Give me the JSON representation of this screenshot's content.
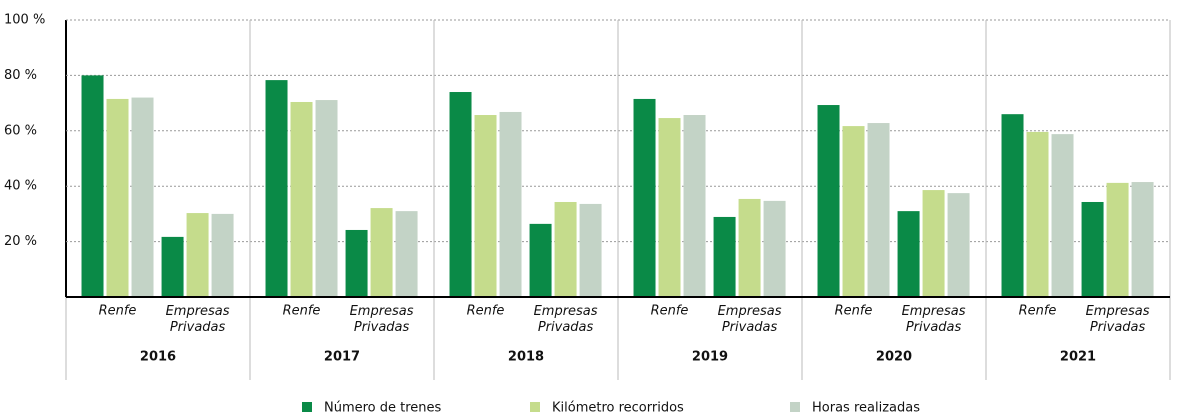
{
  "chart_data": {
    "type": "bar",
    "groups": [
      "2016",
      "2017",
      "2018",
      "2019",
      "2020",
      "2021"
    ],
    "categories": [
      "Renfe",
      "Empresas Privadas",
      "Renfe",
      "Empresas Privadas",
      "Renfe",
      "Empresas Privadas",
      "Renfe",
      "Empresas Privadas",
      "Renfe",
      "Empresas Privadas",
      "Renfe",
      "Empresas Privadas"
    ],
    "series": [
      {
        "name": "Número de trenes",
        "color": "#0a8a47",
        "values": [
          80,
          21.7,
          78.3,
          24.2,
          74,
          26.4,
          71.5,
          28.9,
          69.3,
          31,
          66,
          34.3
        ]
      },
      {
        "name": "Kilómetro recorridos",
        "color": "#c5dc8c",
        "values": [
          71.5,
          30.3,
          70.4,
          32.1,
          65.7,
          34.3,
          64.6,
          35.4,
          61.7,
          38.6,
          59.6,
          41.2
        ]
      },
      {
        "name": "Horas realizadas",
        "color": "#c3d3c6",
        "values": [
          72,
          30,
          71.1,
          31,
          66.8,
          33.6,
          65.7,
          34.7,
          62.8,
          37.5,
          58.8,
          41.5
        ]
      }
    ],
    "ylim": [
      0,
      100
    ],
    "yticks": [
      {
        "value": 20,
        "label": "20 %"
      },
      {
        "value": 40,
        "label": "40 %"
      },
      {
        "value": 60,
        "label": "60 %"
      },
      {
        "value": 80,
        "label": "80 %"
      },
      {
        "value": 100,
        "label": "100 %"
      }
    ],
    "grid": true
  }
}
